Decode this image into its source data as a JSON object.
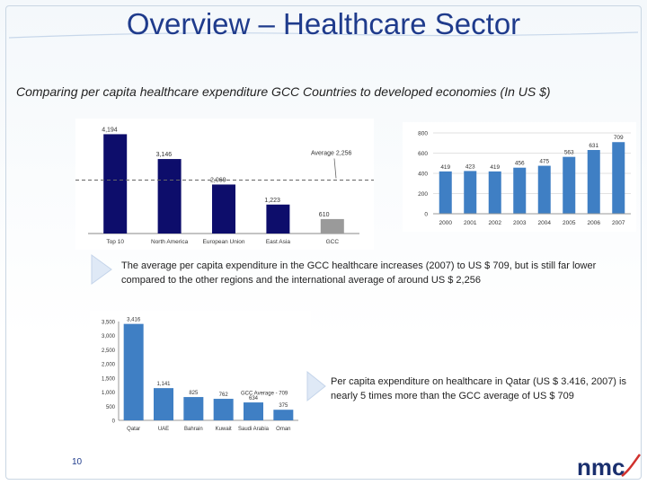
{
  "slide": {
    "title": "Overview – Healthcare Sector",
    "subtitle": "Comparing per capita healthcare expenditure GCC Countries to developed economies (In US $)",
    "note1": "The average per capita expenditure  in the GCC healthcare increases (2007) to US $ 709, but is still far lower  compared to the other regions  and the international average of around US $ 2,256",
    "note2": "Per capita expenditure on healthcare in Qatar (US $ 3.416, 2007) is nearly 5 times more than the GCC average of US $ 709",
    "page_number": "10",
    "logo_text": "nmc",
    "colors": {
      "title": "#1f3b8c",
      "navy_bar": "#0d0d6b",
      "gray_bar": "#9a9a9a",
      "blue_bar": "#3f7fc4",
      "arrow": "#dfe9f6"
    }
  },
  "chart_data": [
    {
      "type": "bar",
      "categories": [
        "Top 10",
        "North America",
        "European Union",
        "East Asia",
        "GCC"
      ],
      "values": [
        4194,
        3146,
        2069,
        1223,
        610
      ],
      "data_labels": [
        "4,194",
        "3,146",
        "2,069",
        "1,223",
        "610"
      ],
      "annotations": [
        {
          "text": "Average 2,256",
          "value": 2256
        }
      ],
      "ylim": [
        0,
        4400
      ]
    },
    {
      "type": "bar",
      "categories": [
        "2000",
        "2001",
        "2002",
        "2003",
        "2004",
        "2005",
        "2006",
        "2007"
      ],
      "values": [
        419,
        423,
        419,
        456,
        475,
        563,
        631,
        709
      ],
      "data_labels": [
        "419",
        "423",
        "419",
        "456",
        "475",
        "563",
        "631",
        "709"
      ],
      "yticks": [
        "0",
        "200",
        "400",
        "600",
        "800"
      ],
      "ylim": [
        0,
        800
      ]
    },
    {
      "type": "bar",
      "categories": [
        "Qatar",
        "UAE",
        "Bahrain",
        "Kuwait",
        "Saudi Arabia",
        "Oman"
      ],
      "values": [
        3416,
        1141,
        825,
        762,
        634,
        375
      ],
      "data_labels": [
        "3,416",
        "1,141",
        "825",
        "762",
        "634",
        "375"
      ],
      "yticks": [
        "0",
        "500",
        "1,000",
        "1,500",
        "2,000",
        "2,500",
        "3,000",
        "3,500"
      ],
      "annotations": [
        {
          "text": "GCC Average - 709",
          "value": 709
        }
      ],
      "ylim": [
        0,
        3500
      ]
    }
  ]
}
